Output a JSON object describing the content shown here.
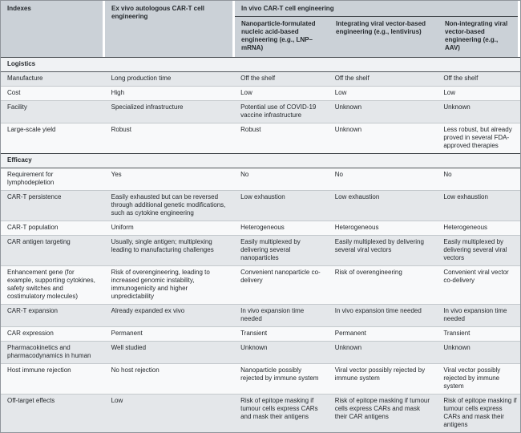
{
  "colors": {
    "header_bg": "#cbd1d7",
    "band_bg": "#f0f2f4",
    "row_shaded": "#e4e7ea",
    "row_plain": "#f8f9fa",
    "heavy_line": "#3c4146",
    "band_line": "#53585d",
    "light_line": "#c4c9cd",
    "text_color": "#24282c"
  },
  "table": {
    "header": {
      "col1": "Indexes",
      "col2": "Ex vivo autologous CAR-T cell engineering",
      "in_vivo_group": "In vivo CAR-T cell engineering",
      "col3": "Nanoparticle-formulated nucleic acid-based engineering (e.g., LNP–mRNA)",
      "col4": "Integrating viral vector-based engineering (e.g., lentivirus)",
      "col5": "Non-integrating viral vector-based engineering (e.g., AAV)"
    },
    "sections": [
      {
        "title": "Logistics",
        "rows": [
          {
            "label": "Manufacture",
            "values": [
              "Long production time",
              "Off the shelf",
              "Off the shelf",
              "Off the shelf"
            ]
          },
          {
            "label": "Cost",
            "values": [
              "High",
              "Low",
              "Low",
              "Low"
            ]
          },
          {
            "label": "Facility",
            "values": [
              "Specialized infrastructure",
              "Potential use of COVID-19 vaccine infrastructure",
              "Unknown",
              "Unknown"
            ]
          },
          {
            "label": "Large-scale yield",
            "values": [
              "Robust",
              "Robust",
              "Unknown",
              "Less robust, but already proved in several FDA-approved therapies"
            ]
          }
        ]
      },
      {
        "title": "Efficacy",
        "rows": [
          {
            "label": "Requirement for lymphodepletion",
            "values": [
              "Yes",
              "No",
              "No",
              "No"
            ]
          },
          {
            "label": "CAR-T persistence",
            "values": [
              "Easily exhausted but can be reversed through additional genetic modifications, such as cytokine engineering",
              "Low exhaustion",
              "Low exhaustion",
              "Low exhaustion"
            ]
          },
          {
            "label": "CAR-T population",
            "values": [
              "Uniform",
              "Heterogeneous",
              "Heterogeneous",
              "Heterogeneous"
            ]
          },
          {
            "label": "CAR antigen targeting",
            "values": [
              "Usually, single antigen; multiplexing leading to manufacturing challenges",
              "Easily multiplexed by delivering several nanoparticles",
              "Easily multiplexed by delivering several viral vectors",
              "Easily multiplexed by delivering several viral vectors"
            ]
          },
          {
            "label": "Enhancement gene (for example, supporting cytokines, safety switches and costimulatory molecules)",
            "values": [
              "Risk of overengineering, leading to increased genomic instability, immunogenicity and higher unpredictability",
              "Convenient nanoparticle co-delivery",
              "Risk of overengineering",
              "Convenient viral vector co-delivery"
            ]
          },
          {
            "label": "CAR-T expansion",
            "values": [
              "Already expanded ex vivo",
              "In vivo expansion time needed",
              "In vivo expansion time needed",
              "In vivo expansion time needed"
            ]
          },
          {
            "label": "CAR expression",
            "values": [
              "Permanent",
              "Transient",
              "Permanent",
              "Transient"
            ]
          },
          {
            "label": "Pharmacokinetics and pharmacodynamics in human",
            "values": [
              "Well studied",
              "Unknown",
              "Unknown",
              "Unknown"
            ]
          },
          {
            "label": "Host immune rejection",
            "values": [
              "No host rejection",
              "Nanoparticle possibly rejected by immune system",
              "Viral vector possibly rejected by immune system",
              "Viral vector possibly rejected by immune system"
            ]
          },
          {
            "label": "Off-target effects",
            "values": [
              "Low",
              "Risk of epitope masking if tumour cells express CARs and mask their antigens",
              "Risk of epitope masking if tumour cells express CARs and mask their CAR antigens",
              "Risk of epitope masking if tumour cells express CARs and mask their antigens"
            ]
          }
        ]
      }
    ]
  }
}
